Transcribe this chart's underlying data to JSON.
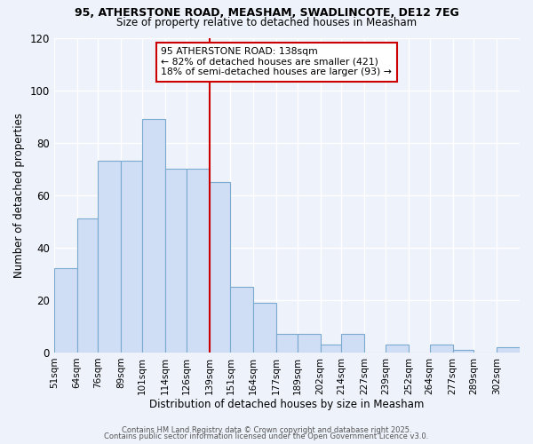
{
  "title": "95, ATHERSTONE ROAD, MEASHAM, SWADLINCOTE, DE12 7EG",
  "subtitle": "Size of property relative to detached houses in Measham",
  "xlabel": "Distribution of detached houses by size in Measham",
  "ylabel": "Number of detached properties",
  "bar_color": "#cfddf5",
  "bar_edge_color": "#7aaad0",
  "background_color": "#eef2fa",
  "grid_color": "#ffffff",
  "bins": [
    51,
    64,
    76,
    89,
    101,
    114,
    126,
    139,
    151,
    164,
    177,
    189,
    202,
    214,
    227,
    239,
    252,
    264,
    277,
    289,
    302
  ],
  "counts": [
    32,
    51,
    73,
    73,
    89,
    70,
    70,
    65,
    25,
    19,
    7,
    7,
    3,
    7,
    0,
    3,
    0,
    3,
    1,
    0,
    2
  ],
  "tick_labels": [
    "51sqm",
    "64sqm",
    "76sqm",
    "89sqm",
    "101sqm",
    "114sqm",
    "126sqm",
    "139sqm",
    "151sqm",
    "164sqm",
    "177sqm",
    "189sqm",
    "202sqm",
    "214sqm",
    "227sqm",
    "239sqm",
    "252sqm",
    "264sqm",
    "277sqm",
    "289sqm",
    "302sqm"
  ],
  "vline_x": 139,
  "vline_color": "#cc0000",
  "annotation_text": "95 ATHERSTONE ROAD: 138sqm\n← 82% of detached houses are smaller (421)\n18% of semi-detached houses are larger (93) →",
  "annotation_box_color": "#ffffff",
  "annotation_box_edge": "#cc0000",
  "ylim": [
    0,
    120
  ],
  "yticks": [
    0,
    20,
    40,
    60,
    80,
    100,
    120
  ],
  "footer1": "Contains HM Land Registry data © Crown copyright and database right 2025.",
  "footer2": "Contains public sector information licensed under the Open Government Licence v3.0."
}
